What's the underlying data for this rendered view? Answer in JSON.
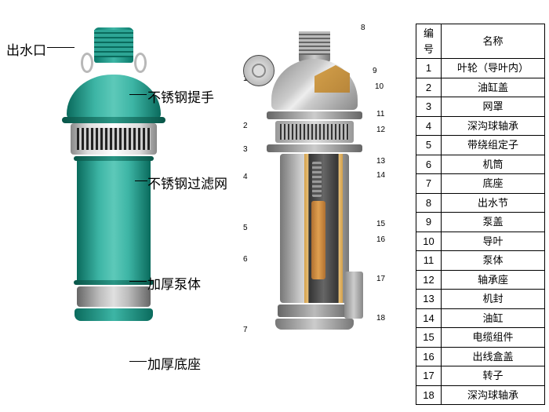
{
  "left_labels": {
    "outlet": "出水口",
    "handle": "不锈钢提手",
    "filter": "不锈钢过滤网",
    "body": "加厚泵体",
    "base": "加厚底座"
  },
  "table": {
    "headers": [
      "编号",
      "名称"
    ],
    "rows": [
      [
        "1",
        "叶轮（导叶内）"
      ],
      [
        "2",
        "油缸盖"
      ],
      [
        "3",
        "网罩"
      ],
      [
        "4",
        "深沟球轴承"
      ],
      [
        "5",
        "带绕组定子"
      ],
      [
        "6",
        "机筒"
      ],
      [
        "7",
        "底座"
      ],
      [
        "8",
        "出水节"
      ],
      [
        "9",
        "泵盖"
      ],
      [
        "10",
        "导叶"
      ],
      [
        "11",
        "泵体"
      ],
      [
        "12",
        "轴承座"
      ],
      [
        "13",
        "机封"
      ],
      [
        "14",
        "油缸"
      ],
      [
        "15",
        "电缆组件"
      ],
      [
        "16",
        "出线盒盖"
      ],
      [
        "17",
        "转子"
      ],
      [
        "18",
        "深沟球轴承"
      ]
    ]
  },
  "diagram_numbers": [
    "1",
    "2",
    "3",
    "4",
    "5",
    "6",
    "7",
    "8",
    "9",
    "10",
    "11",
    "12",
    "13",
    "14",
    "15",
    "16",
    "17",
    "18"
  ],
  "colors": {
    "pump_teal": "#3db5a5",
    "pump_teal_dark": "#0a6b5d",
    "brass": "#d4a04a",
    "steel": "#cccccc",
    "steel_dark": "#777777"
  }
}
